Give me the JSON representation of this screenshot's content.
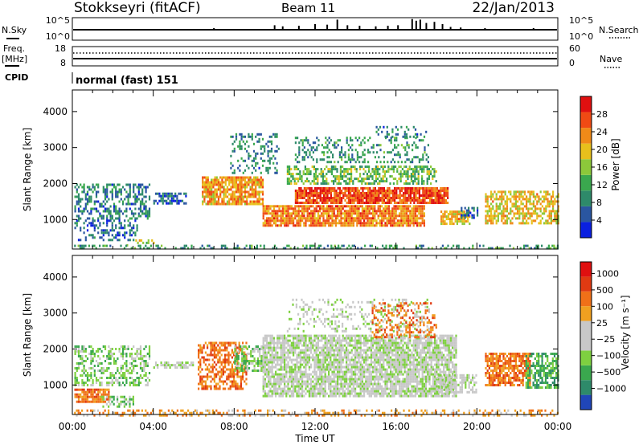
{
  "header": {
    "station": "Stokkseyri (fitACF)",
    "beam": "Beam 11",
    "date": "22/Jan/2013"
  },
  "nsky_panel": {
    "left_label": "N.Sky",
    "left_ticks": [
      "10^5",
      "10^0"
    ],
    "right_ticks": [
      "10^5",
      "10^0"
    ],
    "right_label": "N.Search",
    "spike_levels": [
      {
        "t": 7.0,
        "v": 0.15
      },
      {
        "t": 10.0,
        "v": 0.4
      },
      {
        "t": 10.4,
        "v": 0.3
      },
      {
        "t": 11.2,
        "v": 0.35
      },
      {
        "t": 12.0,
        "v": 0.5
      },
      {
        "t": 12.6,
        "v": 0.45
      },
      {
        "t": 13.1,
        "v": 0.9
      },
      {
        "t": 13.6,
        "v": 0.4
      },
      {
        "t": 14.2,
        "v": 0.35
      },
      {
        "t": 15.0,
        "v": 0.3
      },
      {
        "t": 15.6,
        "v": 0.35
      },
      {
        "t": 16.1,
        "v": 0.4
      },
      {
        "t": 16.8,
        "v": 0.95
      },
      {
        "t": 17.0,
        "v": 0.8
      },
      {
        "t": 17.2,
        "v": 0.9
      },
      {
        "t": 17.5,
        "v": 0.6
      },
      {
        "t": 17.9,
        "v": 0.7
      },
      {
        "t": 18.3,
        "v": 0.5
      },
      {
        "t": 18.7,
        "v": 0.25
      },
      {
        "t": 19.2,
        "v": 0.2
      },
      {
        "t": 20.4,
        "v": 0.15
      },
      {
        "t": 22.8,
        "v": 0.15
      }
    ]
  },
  "freq_panel": {
    "left_label_1": "Freq.",
    "left_label_2": "[MHz]",
    "left_ticks": [
      "18",
      "8"
    ],
    "right_ticks": [
      "60",
      "0"
    ],
    "right_label": "Nave"
  },
  "cpid": {
    "label": "CPID",
    "value": "normal (fast) 151"
  },
  "chart_data": [
    {
      "type": "heatmap",
      "ylabel": "Slant Range [km]",
      "yticks": [
        "1000",
        "2000",
        "3000",
        "4000"
      ],
      "ylim": [
        180,
        4600
      ],
      "colorbar_label": "Power [dB]",
      "colorbar_ticks": [
        "4",
        "8",
        "12",
        "16",
        "20",
        "24",
        "28"
      ],
      "colorbar_range": [
        0,
        32
      ],
      "colors": [
        "#0a20e0",
        "#2a56a0",
        "#2e8a6a",
        "#3aa84e",
        "#8cc83a",
        "#e8c01c",
        "#f08a18",
        "#f04a14",
        "#e01010"
      ],
      "blobs": [
        {
          "t": [
            0.1,
            3.8
          ],
          "r": [
            1000,
            2000
          ],
          "p": 8,
          "d": 0.45
        },
        {
          "t": [
            0.1,
            3.2
          ],
          "r": [
            400,
            1000
          ],
          "p": 6,
          "d": 0.35
        },
        {
          "t": [
            2.5,
            4.2
          ],
          "r": [
            250,
            450
          ],
          "p": 18,
          "d": 0.3
        },
        {
          "t": [
            4.0,
            5.6
          ],
          "r": [
            1450,
            1750
          ],
          "p": 6,
          "d": 0.5
        },
        {
          "t": [
            6.4,
            9.4
          ],
          "r": [
            1450,
            2200
          ],
          "p": 22,
          "d": 0.8
        },
        {
          "t": [
            7.8,
            10.2
          ],
          "r": [
            2300,
            3400
          ],
          "p": 8,
          "d": 0.3
        },
        {
          "t": [
            9.4,
            17.4
          ],
          "r": [
            800,
            1400
          ],
          "p": 24,
          "d": 0.85
        },
        {
          "t": [
            11.0,
            18.6
          ],
          "r": [
            1450,
            1900
          ],
          "p": 27,
          "d": 0.9
        },
        {
          "t": [
            10.6,
            18.0
          ],
          "r": [
            2000,
            2500
          ],
          "p": 14,
          "d": 0.55
        },
        {
          "t": [
            11.0,
            17.6
          ],
          "r": [
            2600,
            3300
          ],
          "p": 10,
          "d": 0.3
        },
        {
          "t": [
            15.0,
            17.6
          ],
          "r": [
            3300,
            3600
          ],
          "p": 8,
          "d": 0.2
        },
        {
          "t": [
            18.2,
            19.6
          ],
          "r": [
            850,
            1250
          ],
          "p": 20,
          "d": 0.75
        },
        {
          "t": [
            19.2,
            20.0
          ],
          "r": [
            1050,
            1350
          ],
          "p": 6,
          "d": 0.6
        },
        {
          "t": [
            20.4,
            24.0
          ],
          "r": [
            900,
            1800
          ],
          "p": 20,
          "d": 0.6
        },
        {
          "t": [
            0.0,
            24.0
          ],
          "r": [
            180,
            300
          ],
          "p": 10,
          "d": 0.35
        }
      ]
    },
    {
      "type": "heatmap",
      "ylabel": "Slant Range [km]",
      "yticks": [
        "1000",
        "2000",
        "3000",
        "4000"
      ],
      "ylim": [
        180,
        4600
      ],
      "colorbar_label": "Velocity [m s⁻¹]",
      "colorbar_ticks": [
        "1000",
        "500",
        "100",
        "25",
        "−25",
        "−100",
        "−500",
        "−1000"
      ],
      "colors": [
        "#2046b8",
        "#2e8a6a",
        "#3aa84e",
        "#7ed040",
        "#c8c8c8",
        "#c8c8c8",
        "#f0a020",
        "#f07018",
        "#e03a12",
        "#e01010"
      ],
      "blobs": [
        {
          "t": [
            0.1,
            3.8
          ],
          "r": [
            1000,
            2100
          ],
          "v": 3,
          "d": 0.45
        },
        {
          "t": [
            0.1,
            1.8
          ],
          "r": [
            500,
            900
          ],
          "v": 7,
          "d": 0.8
        },
        {
          "t": [
            1.4,
            3.0
          ],
          "r": [
            400,
            700
          ],
          "v": 3,
          "d": 0.5
        },
        {
          "t": [
            4.0,
            6.0
          ],
          "r": [
            1450,
            1650
          ],
          "v": 4,
          "d": 0.7
        },
        {
          "t": [
            6.2,
            8.6
          ],
          "r": [
            900,
            2200
          ],
          "v": 7,
          "d": 0.55
        },
        {
          "t": [
            8.0,
            9.4
          ],
          "r": [
            1400,
            2100
          ],
          "v": 3,
          "d": 0.6
        },
        {
          "t": [
            9.4,
            19.0
          ],
          "r": [
            700,
            2400
          ],
          "v": 4,
          "d": 0.8
        },
        {
          "t": [
            10.6,
            17.6
          ],
          "r": [
            2500,
            3400
          ],
          "v": 4,
          "d": 0.25
        },
        {
          "t": [
            14.8,
            18.0
          ],
          "r": [
            2300,
            3300
          ],
          "v": 7,
          "d": 0.3
        },
        {
          "t": [
            18.0,
            20.0
          ],
          "r": [
            800,
            1300
          ],
          "v": 4,
          "d": 0.6
        },
        {
          "t": [
            20.4,
            22.6
          ],
          "r": [
            1000,
            1900
          ],
          "v": 7,
          "d": 0.75
        },
        {
          "t": [
            22.4,
            24.0
          ],
          "r": [
            900,
            1900
          ],
          "v": 2,
          "d": 0.6
        },
        {
          "t": [
            0.0,
            24.0
          ],
          "r": [
            180,
            320
          ],
          "v": 6,
          "d": 0.35
        }
      ]
    }
  ],
  "x_axis": {
    "ticks": [
      "00:00",
      "04:00",
      "08:00",
      "12:00",
      "16:00",
      "20:00",
      "00:00"
    ],
    "label": "Time UT"
  }
}
